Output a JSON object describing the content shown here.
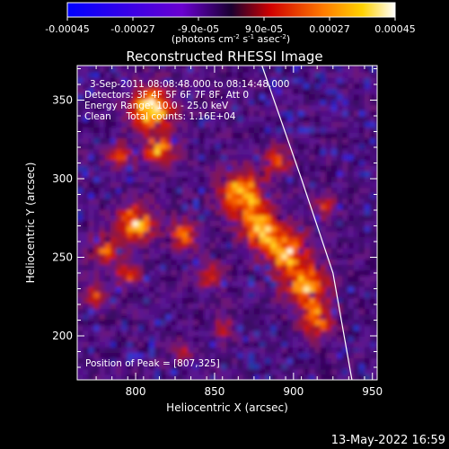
{
  "colorbar": {
    "tick_labels": [
      "-0.00045",
      "-0.00027",
      "-9.0e-05",
      "9.0e-05",
      "0.00027",
      "0.00045"
    ],
    "unit_main": "(photons cm",
    "unit_exp1": "-2",
    "unit_mid": " s",
    "unit_exp2": "-1",
    "unit_mid2": " asec",
    "unit_exp3": "-2",
    "unit_end": ")",
    "range": [
      -0.00045,
      0.00045
    ]
  },
  "chart_data": {
    "type": "heatmap",
    "title": "Reconstructed RHESSI Image",
    "xlabel": "Heliocentric X (arcsec)",
    "ylabel": "Heliocentric Y (arcsec)",
    "xlim": [
      763,
      953
    ],
    "ylim": [
      172,
      372
    ],
    "x_ticks": [
      800,
      850,
      900,
      950
    ],
    "y_ticks": [
      200,
      250,
      300,
      350
    ],
    "colormap": "red-temperature (blue-purple-red-orange-yellow-white)",
    "limb_curve": {
      "points_x": [
        880,
        905,
        925,
        937
      ],
      "points_y": [
        372,
        300,
        240,
        172
      ]
    },
    "peak": {
      "x": 807,
      "y": 325
    },
    "blobs": [
      {
        "x": 810,
        "y": 345,
        "r": 14,
        "v": 0.95
      },
      {
        "x": 815,
        "y": 318,
        "r": 10,
        "v": 0.7
      },
      {
        "x": 790,
        "y": 315,
        "r": 8,
        "v": 0.55
      },
      {
        "x": 800,
        "y": 272,
        "r": 12,
        "v": 0.8
      },
      {
        "x": 780,
        "y": 255,
        "r": 9,
        "v": 0.6
      },
      {
        "x": 830,
        "y": 265,
        "r": 9,
        "v": 0.65
      },
      {
        "x": 775,
        "y": 225,
        "r": 8,
        "v": 0.5
      },
      {
        "x": 795,
        "y": 240,
        "r": 8,
        "v": 0.55
      },
      {
        "x": 848,
        "y": 238,
        "r": 8,
        "v": 0.55
      },
      {
        "x": 868,
        "y": 292,
        "r": 14,
        "v": 0.85
      },
      {
        "x": 878,
        "y": 270,
        "r": 12,
        "v": 0.8
      },
      {
        "x": 895,
        "y": 255,
        "r": 14,
        "v": 0.8
      },
      {
        "x": 908,
        "y": 232,
        "r": 14,
        "v": 0.8
      },
      {
        "x": 915,
        "y": 210,
        "r": 10,
        "v": 0.65
      },
      {
        "x": 890,
        "y": 312,
        "r": 9,
        "v": 0.55
      },
      {
        "x": 855,
        "y": 205,
        "r": 7,
        "v": 0.45
      },
      {
        "x": 830,
        "y": 190,
        "r": 6,
        "v": 0.4
      },
      {
        "x": 920,
        "y": 282,
        "r": 7,
        "v": 0.45
      }
    ]
  },
  "annotations": {
    "line1": "3-Sep-2011 08:08:48.000 to 08:14:48.000",
    "line2": "Detectors: 3F 4F 5F 6F 7F 8F, Att 0",
    "line3": "Energy Range: 10.0 - 25.0 keV",
    "line4": "Clean     Total counts: 1.16E+04",
    "peak_label": "Position of Peak = [807,325]"
  },
  "footer": {
    "date": "13-May-2022 16:59"
  }
}
